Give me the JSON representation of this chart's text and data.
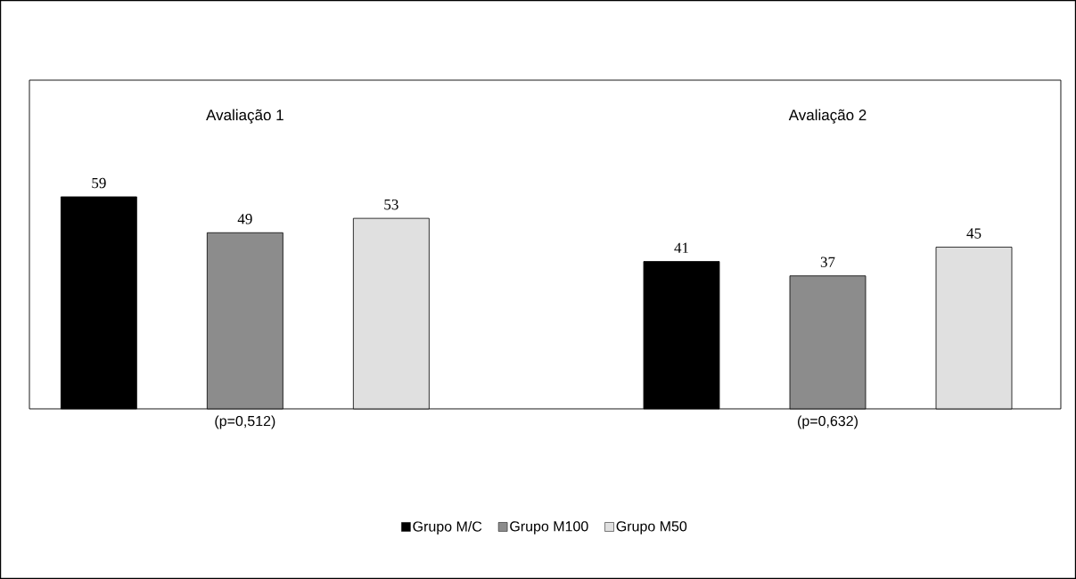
{
  "chart_data": {
    "type": "bar",
    "categories": [
      "(p=0,512)",
      "(p=0,632)"
    ],
    "series": [
      {
        "name": "Grupo M/C",
        "color": "#000000",
        "values": [
          59,
          41
        ]
      },
      {
        "name": "Grupo M100",
        "color": "#8c8c8c",
        "values": [
          49,
          37
        ]
      },
      {
        "name": "Grupo M50",
        "color": "#e0e0e0",
        "values": [
          53,
          45
        ]
      }
    ],
    "annotations": [
      "Avaliação 1",
      "Avaliação 2"
    ],
    "data_labels": true,
    "legend": "bottom"
  }
}
